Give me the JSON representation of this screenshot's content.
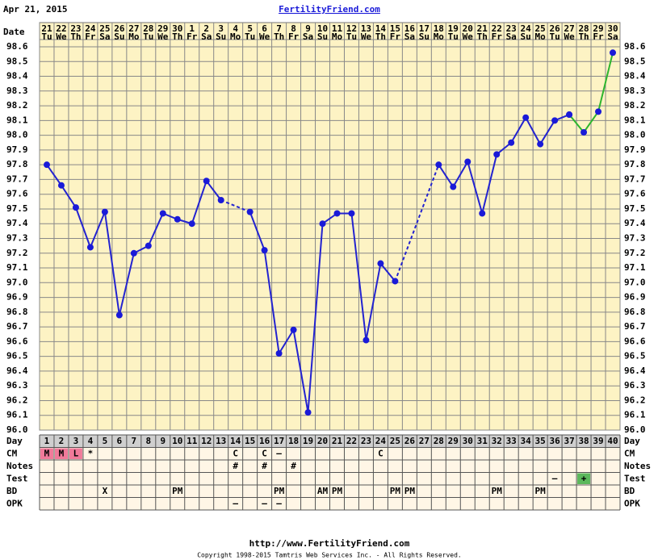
{
  "header": {
    "date": "Apr 21, 2015",
    "site": "FertilityFriend.com"
  },
  "chart_data": {
    "type": "line",
    "date_label": "Date",
    "categories": [
      "21",
      "22",
      "23",
      "24",
      "25",
      "26",
      "27",
      "28",
      "29",
      "30",
      "1",
      "2",
      "3",
      "4",
      "5",
      "6",
      "7",
      "8",
      "9",
      "10",
      "11",
      "12",
      "13",
      "14",
      "15",
      "16",
      "17",
      "18",
      "19",
      "20",
      "21",
      "22",
      "23",
      "24",
      "25",
      "26",
      "27",
      "28",
      "29",
      "30"
    ],
    "weekdays": [
      "Tu",
      "We",
      "Th",
      "Fr",
      "Sa",
      "Su",
      "Mo",
      "Tu",
      "We",
      "Th",
      "Fr",
      "Sa",
      "Su",
      "Mo",
      "Tu",
      "We",
      "Th",
      "Fr",
      "Sa",
      "Su",
      "Mo",
      "Tu",
      "We",
      "Th",
      "Fr",
      "Sa",
      "Su",
      "Mo",
      "Tu",
      "We",
      "Th",
      "Fr",
      "Sa",
      "Su",
      "Mo",
      "Tu",
      "We",
      "Th",
      "Fr",
      "Sa"
    ],
    "series": [
      {
        "color": "#2323d0",
        "marker_color": "#1a1ad8",
        "values": [
          97.8,
          97.66,
          97.51,
          97.24,
          97.48,
          96.78,
          97.2,
          97.25,
          97.47,
          97.43,
          97.4,
          97.69,
          97.56,
          null,
          97.48,
          97.22,
          96.52,
          96.68,
          96.12,
          97.4,
          97.47,
          97.47,
          96.61,
          97.13,
          97.01,
          null,
          null,
          97.8,
          97.65,
          97.82,
          97.47,
          97.87,
          97.95,
          98.12,
          97.94,
          98.1,
          98.14,
          null,
          null,
          null
        ]
      },
      {
        "color": "#2db52d",
        "marker_color": "#1a1ad8",
        "values": [
          null,
          null,
          null,
          null,
          null,
          null,
          null,
          null,
          null,
          null,
          null,
          null,
          null,
          null,
          null,
          null,
          null,
          null,
          null,
          null,
          null,
          null,
          null,
          null,
          null,
          null,
          null,
          null,
          null,
          null,
          null,
          null,
          null,
          null,
          null,
          null,
          98.14,
          98.02,
          98.16,
          98.56
        ]
      }
    ],
    "ylim": [
      96.0,
      98.6
    ],
    "yticks": [
      {
        "value": 96,
        "label": "96.0"
      },
      96.1,
      96.2,
      96.3,
      96.4,
      96.5,
      96.6,
      96.7,
      96.8,
      96.9,
      {
        "value": 97,
        "label": "97.0"
      },
      97.1,
      97.2,
      97.3,
      97.4,
      97.5,
      97.6,
      97.7,
      97.8,
      97.9,
      {
        "value": 98,
        "label": "98.0"
      },
      98.1,
      98.2,
      98.3,
      98.4,
      98.5,
      98.6
    ],
    "grid": true,
    "background": "#fdf3c4"
  },
  "table": {
    "day_label": "Day",
    "days": [
      1,
      2,
      3,
      4,
      5,
      6,
      7,
      8,
      9,
      10,
      11,
      12,
      13,
      14,
      15,
      16,
      17,
      18,
      19,
      20,
      21,
      22,
      23,
      24,
      25,
      26,
      27,
      28,
      29,
      30,
      31,
      32,
      33,
      34,
      35,
      36,
      37,
      38,
      39,
      40
    ],
    "rows": [
      {
        "label": "CM",
        "cells": [
          {
            "text": "M",
            "color": "#f07a9a"
          },
          {
            "text": "M",
            "color": "#f07a9a"
          },
          {
            "text": "L",
            "color": "#f07a9a"
          },
          {
            "text": "*"
          },
          null,
          null,
          null,
          null,
          null,
          null,
          null,
          null,
          null,
          {
            "text": "C"
          },
          null,
          {
            "text": "C"
          },
          {
            "text": "–"
          },
          null,
          null,
          null,
          null,
          null,
          null,
          {
            "text": "C"
          },
          null,
          null,
          null,
          null,
          null,
          null,
          null,
          null,
          null,
          null,
          null,
          null,
          null,
          null,
          null,
          null
        ]
      },
      {
        "label": "Notes",
        "cells": [
          null,
          null,
          null,
          null,
          null,
          null,
          null,
          null,
          null,
          null,
          null,
          null,
          null,
          {
            "text": "#"
          },
          null,
          {
            "text": "#"
          },
          null,
          {
            "text": "#"
          },
          null,
          null,
          null,
          null,
          null,
          null,
          null,
          null,
          null,
          null,
          null,
          null,
          null,
          null,
          null,
          null,
          null,
          null,
          null,
          null,
          null,
          null
        ]
      },
      {
        "label": "Test",
        "cells": [
          null,
          null,
          null,
          null,
          null,
          null,
          null,
          null,
          null,
          null,
          null,
          null,
          null,
          null,
          null,
          null,
          null,
          null,
          null,
          null,
          null,
          null,
          null,
          null,
          null,
          null,
          null,
          null,
          null,
          null,
          null,
          null,
          null,
          null,
          null,
          {
            "text": "–"
          },
          null,
          {
            "text": "+",
            "color": "#5cb85c"
          },
          null,
          null
        ]
      },
      {
        "label": "BD",
        "cells": [
          null,
          null,
          null,
          null,
          {
            "text": "X"
          },
          null,
          null,
          null,
          null,
          {
            "text": "PM"
          },
          null,
          null,
          null,
          null,
          null,
          null,
          {
            "text": "PM"
          },
          null,
          null,
          {
            "text": "AM"
          },
          {
            "text": "PM"
          },
          null,
          null,
          null,
          {
            "text": "PM"
          },
          {
            "text": "PM"
          },
          null,
          null,
          null,
          null,
          null,
          {
            "text": "PM"
          },
          null,
          null,
          {
            "text": "PM"
          },
          null,
          null,
          null,
          null,
          null
        ]
      },
      {
        "label": "OPK",
        "cells": [
          null,
          null,
          null,
          null,
          null,
          null,
          null,
          null,
          null,
          null,
          null,
          null,
          null,
          {
            "text": "–"
          },
          null,
          {
            "text": "–"
          },
          {
            "text": "–"
          },
          null,
          null,
          null,
          null,
          null,
          null,
          null,
          null,
          null,
          null,
          null,
          null,
          null,
          null,
          null,
          null,
          null,
          null,
          null,
          null,
          null,
          null,
          null
        ]
      }
    ]
  },
  "footer": {
    "url": "http://www.FertilityFriend.com",
    "copyright": "Copyright 1998-2015 Tamtris Web Services Inc. - All Rights Reserved."
  }
}
